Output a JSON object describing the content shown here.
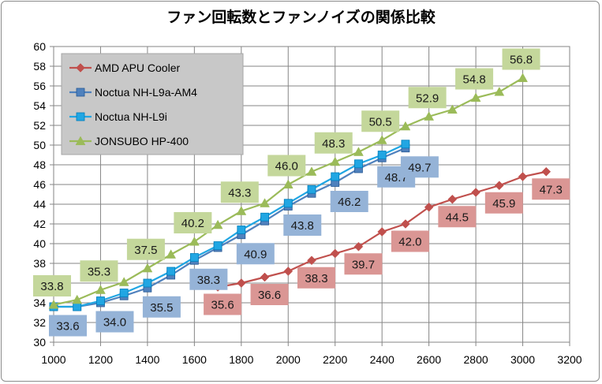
{
  "chart_data": {
    "type": "line",
    "title": "ファン回転数とファンノイズの関係比較",
    "xlabel": "",
    "ylabel": "",
    "xlim": [
      1000,
      3200
    ],
    "ylim": [
      30,
      60
    ],
    "xticks": [
      1000,
      1200,
      1400,
      1600,
      1800,
      2000,
      2200,
      2400,
      2600,
      2800,
      3000,
      3200
    ],
    "yticks": [
      30,
      32,
      34,
      36,
      38,
      40,
      42,
      44,
      46,
      48,
      50,
      52,
      54,
      56,
      58,
      60
    ],
    "grid": true,
    "legend_position": "top-left",
    "series": [
      {
        "name": "AMD APU Cooler",
        "color": "#c0504d",
        "marker": "diamond",
        "x": [
          1700,
          1800,
          1900,
          2000,
          2100,
          2200,
          2300,
          2400,
          2500,
          2600,
          2700,
          2800,
          2900,
          3000,
          3100
        ],
        "y": [
          35.6,
          36.0,
          36.6,
          37.2,
          38.3,
          39.0,
          39.7,
          41.2,
          42.0,
          43.7,
          44.5,
          45.2,
          45.9,
          46.8,
          47.3
        ],
        "labels": [
          {
            "x": 1700,
            "y": 35.6,
            "text": "35.6"
          },
          {
            "x": 1900,
            "y": 36.6,
            "text": "36.6"
          },
          {
            "x": 2100,
            "y": 38.3,
            "text": "38.3"
          },
          {
            "x": 2300,
            "y": 39.7,
            "text": "39.7"
          },
          {
            "x": 2500,
            "y": 42.0,
            "text": "42.0"
          },
          {
            "x": 2700,
            "y": 44.5,
            "text": "44.5"
          },
          {
            "x": 2900,
            "y": 45.9,
            "text": "45.9"
          },
          {
            "x": 3100,
            "y": 47.3,
            "text": "47.3"
          }
        ]
      },
      {
        "name": "Noctua NH-L9a-AM4",
        "color": "#4f81bd",
        "marker": "square",
        "x": [
          1000,
          1100,
          1200,
          1300,
          1400,
          1500,
          1600,
          1700,
          1800,
          1900,
          2000,
          2100,
          2200,
          2300,
          2400,
          2500
        ],
        "y": [
          33.6,
          33.6,
          34.0,
          34.7,
          35.5,
          36.8,
          38.3,
          39.6,
          40.9,
          42.3,
          43.8,
          45.1,
          46.2,
          47.6,
          48.7,
          49.7
        ],
        "labels": [
          {
            "x": 1000,
            "y": 33.6,
            "text": "33.6"
          },
          {
            "x": 1200,
            "y": 34.0,
            "text": "34.0"
          },
          {
            "x": 1400,
            "y": 35.5,
            "text": "35.5"
          },
          {
            "x": 1600,
            "y": 38.3,
            "text": "38.3"
          },
          {
            "x": 1800,
            "y": 40.9,
            "text": "40.9"
          },
          {
            "x": 2000,
            "y": 43.8,
            "text": "43.8"
          },
          {
            "x": 2200,
            "y": 46.2,
            "text": "46.2"
          },
          {
            "x": 2400,
            "y": 48.7,
            "text": "48.7"
          },
          {
            "x": 2500,
            "y": 49.7,
            "text": "49.7"
          }
        ]
      },
      {
        "name": "Noctua NH-L9i",
        "color": "#21a6e3",
        "marker": "square",
        "x": [
          1000,
          1100,
          1200,
          1300,
          1400,
          1500,
          1600,
          1700,
          1800,
          1900,
          2000,
          2100,
          2200,
          2300,
          2400,
          2500
        ],
        "y": [
          33.6,
          33.6,
          34.2,
          35.0,
          36.0,
          37.2,
          38.6,
          39.8,
          41.4,
          42.7,
          44.1,
          45.5,
          46.8,
          48.1,
          49.0,
          50.1
        ],
        "labels": []
      },
      {
        "name": "JONSUBO HP-400",
        "color": "#9bbb59",
        "marker": "triangle",
        "x": [
          1000,
          1100,
          1200,
          1300,
          1400,
          1500,
          1600,
          1700,
          1800,
          1900,
          2000,
          2100,
          2200,
          2300,
          2400,
          2500,
          2600,
          2700,
          2800,
          2900,
          3000
        ],
        "y": [
          33.8,
          34.3,
          35.3,
          36.1,
          37.5,
          38.9,
          40.2,
          41.9,
          43.3,
          44.1,
          46.0,
          47.3,
          48.3,
          49.3,
          50.5,
          51.9,
          52.9,
          53.6,
          54.8,
          55.4,
          56.8
        ],
        "labels": [
          {
            "x": 1000,
            "y": 33.8,
            "text": "33.8"
          },
          {
            "x": 1200,
            "y": 35.3,
            "text": "35.3"
          },
          {
            "x": 1400,
            "y": 37.5,
            "text": "37.5"
          },
          {
            "x": 1600,
            "y": 40.2,
            "text": "40.2"
          },
          {
            "x": 1800,
            "y": 43.3,
            "text": "43.3"
          },
          {
            "x": 2000,
            "y": 46.0,
            "text": "46.0"
          },
          {
            "x": 2200,
            "y": 48.3,
            "text": "48.3"
          },
          {
            "x": 2400,
            "y": 50.5,
            "text": "50.5"
          },
          {
            "x": 2600,
            "y": 52.9,
            "text": "52.9"
          },
          {
            "x": 2800,
            "y": 54.8,
            "text": "54.8"
          },
          {
            "x": 3000,
            "y": 56.8,
            "text": "56.8"
          }
        ]
      }
    ]
  }
}
